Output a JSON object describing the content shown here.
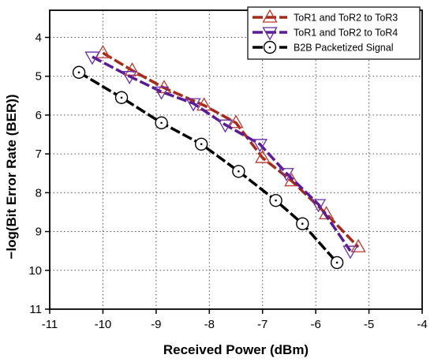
{
  "chart_data": {
    "type": "line",
    "title": "",
    "xlabel": "Received Power (dBm)",
    "ylabel": "−log(Bit Error Rate (BER))",
    "xlim": [
      -11,
      -4
    ],
    "ylim": [
      3.3,
      11
    ],
    "y_inverted": true,
    "x_ticks": [
      "-11",
      "-10",
      "-9",
      "-8",
      "-7",
      "-6",
      "-5",
      "-4"
    ],
    "y_ticks": [
      "4",
      "5",
      "6",
      "7",
      "8",
      "9",
      "10",
      "11"
    ],
    "grid": "dotted",
    "legend_position": "top-right",
    "series": [
      {
        "name": "ToR1 and ToR2 to ToR3",
        "color": "#c0392b",
        "line_color": "#a52a1a",
        "marker": "triangle-up",
        "x": [
          -10.0,
          -9.45,
          -8.85,
          -8.1,
          -7.5,
          -7.0,
          -6.45,
          -5.8,
          -5.2
        ],
        "y": [
          4.4,
          4.85,
          5.3,
          5.75,
          6.2,
          7.1,
          7.7,
          8.55,
          9.4
        ]
      },
      {
        "name": "ToR1 and ToR2 to ToR4",
        "color": "#6a2ca8",
        "line_color": "#5b1a96",
        "marker": "triangle-down",
        "x": [
          -10.2,
          -9.5,
          -8.9,
          -8.3,
          -7.7,
          -7.05,
          -6.55,
          -5.95,
          -5.35
        ],
        "y": [
          4.5,
          5.0,
          5.4,
          5.7,
          6.25,
          6.75,
          7.5,
          8.3,
          9.5
        ]
      },
      {
        "name": "B2B Packetized Signal",
        "color": "#000000",
        "line_color": "#000000",
        "marker": "circle-dot",
        "x": [
          -10.45,
          -9.65,
          -8.9,
          -8.15,
          -7.45,
          -6.75,
          -6.25,
          -5.6
        ],
        "y": [
          4.9,
          5.55,
          6.2,
          6.75,
          7.45,
          8.2,
          8.8,
          9.8
        ]
      }
    ]
  }
}
